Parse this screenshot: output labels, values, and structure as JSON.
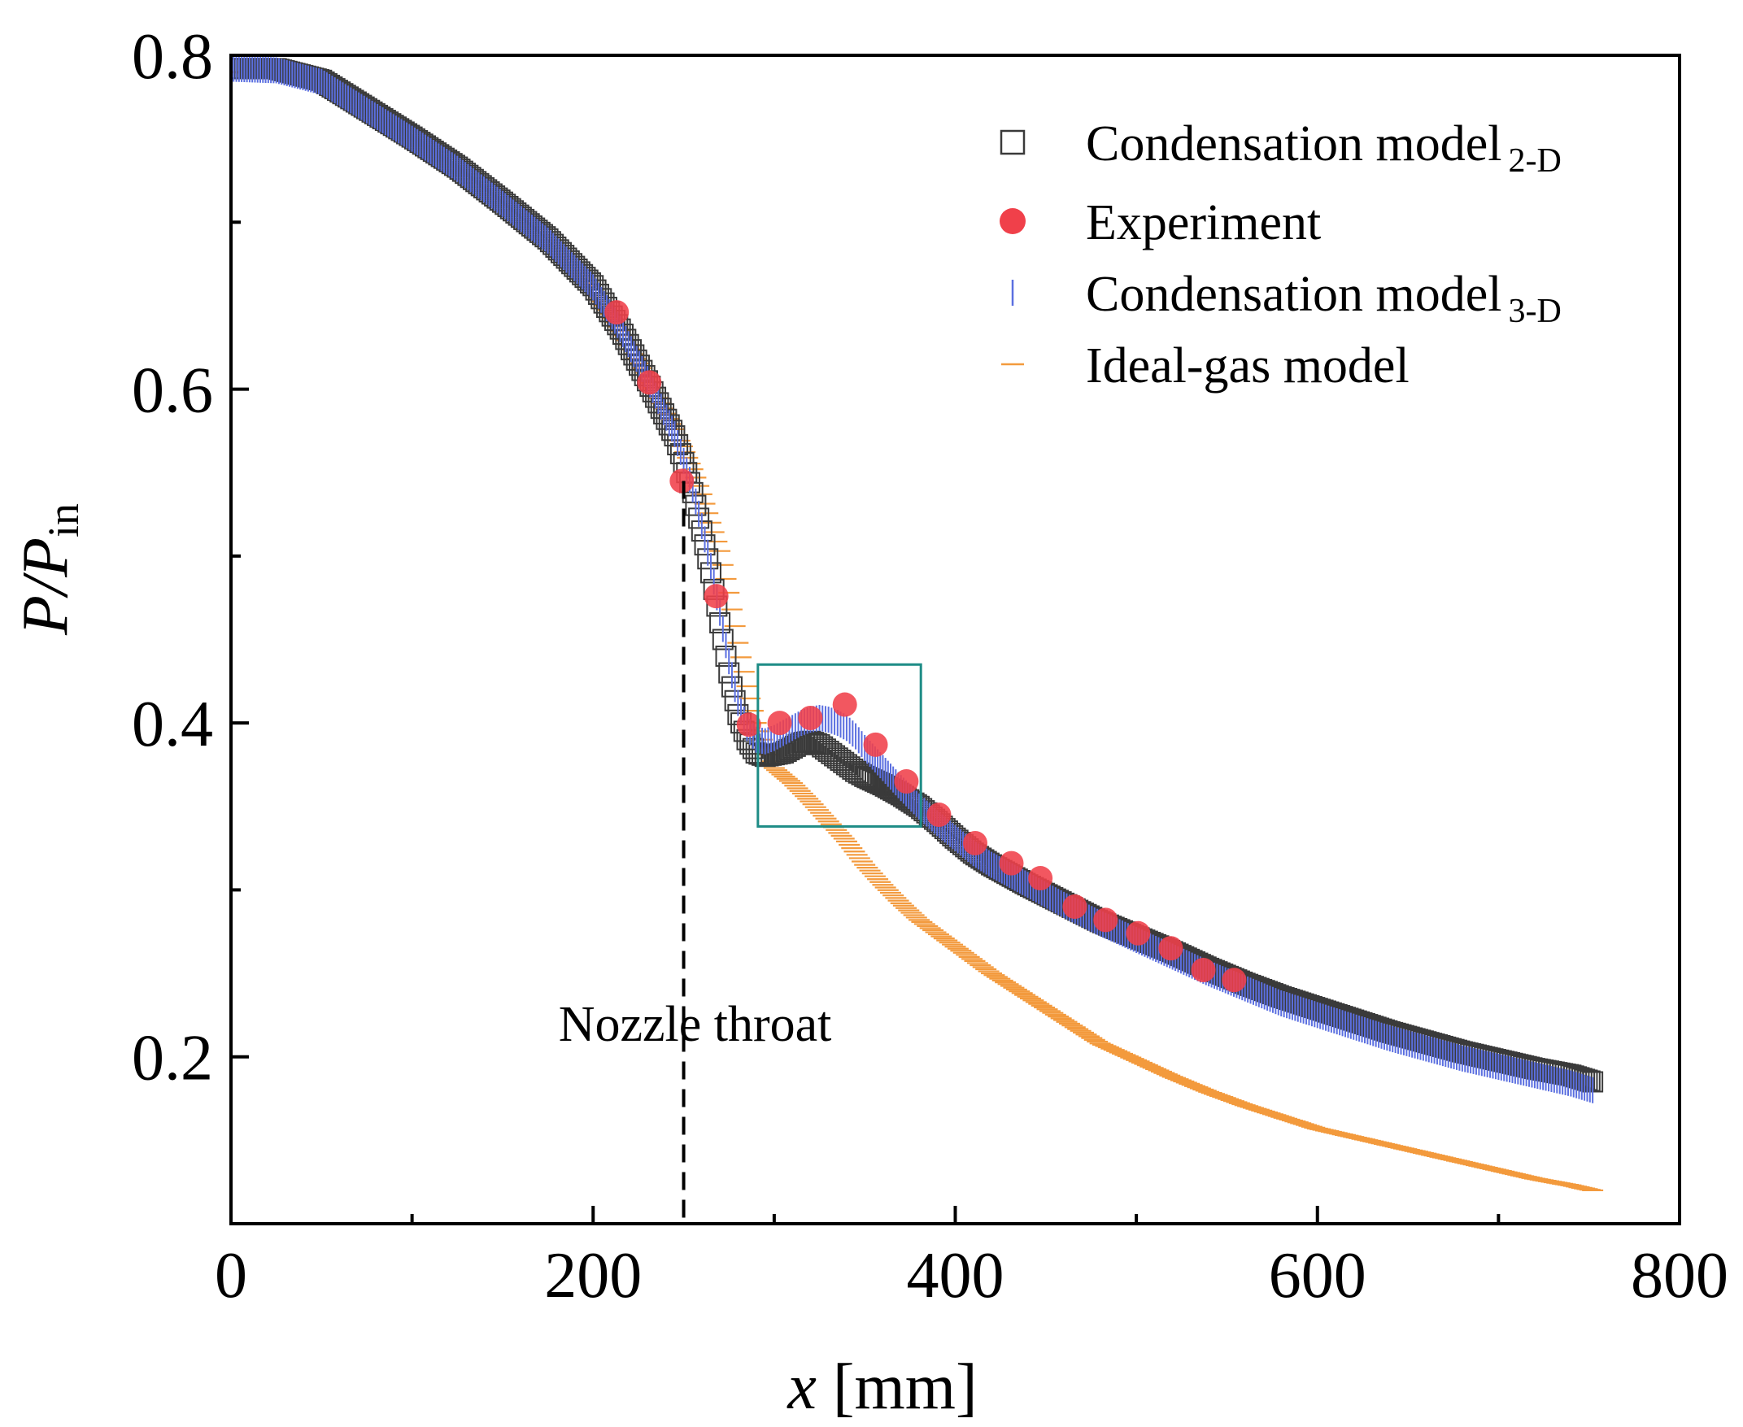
{
  "chart_data": {
    "type": "scatter",
    "title": "",
    "xlabel": {
      "italic": "x",
      "rest": " [mm]"
    },
    "ylabel": {
      "main": "P/P",
      "sub": "in"
    },
    "xlim": [
      0,
      800
    ],
    "ylim": [
      0.1,
      0.8
    ],
    "x_major_ticks": [
      0,
      200,
      400,
      600,
      800
    ],
    "x_minor_ticks": [
      100,
      300,
      500,
      700
    ],
    "y_major_ticks": [
      0.2,
      0.4,
      0.6,
      0.8
    ],
    "y_minor_ticks": [
      0.3,
      0.5,
      0.7
    ],
    "x_tick_labels": [
      "0",
      "200",
      "400",
      "600",
      "800"
    ],
    "y_tick_labels": [
      "0.2",
      "0.4",
      "0.6",
      "0.8"
    ],
    "annotation": {
      "text": "Nozzle throat",
      "x": 250,
      "y_from": 0.1,
      "y_to": 0.545
    },
    "highlight_box": {
      "x0": 291,
      "x1": 381,
      "y0": 0.338,
      "y1": 0.435
    },
    "legend_position": "top-right",
    "series": [
      {
        "name": "Condensation model",
        "name_sub": "2-D",
        "marker": "square",
        "color": "#3a3a3a",
        "x": [
          0,
          25,
          50,
          75,
          100,
          125,
          150,
          175,
          200,
          215,
          230,
          245,
          250,
          255,
          260,
          265,
          270,
          275,
          280,
          285,
          290,
          295,
          300,
          305,
          310,
          315,
          320,
          325,
          330,
          335,
          340,
          345,
          350,
          360,
          370,
          380,
          390,
          400,
          410,
          420,
          430,
          440,
          460,
          480,
          500,
          520,
          540,
          560,
          580,
          600,
          620,
          640,
          660,
          680,
          700,
          720,
          740,
          752
        ],
        "y": [
          0.792,
          0.792,
          0.785,
          0.768,
          0.751,
          0.733,
          0.712,
          0.69,
          0.662,
          0.636,
          0.605,
          0.572,
          0.556,
          0.538,
          0.515,
          0.49,
          0.46,
          0.43,
          0.405,
          0.39,
          0.382,
          0.38,
          0.381,
          0.382,
          0.385,
          0.388,
          0.389,
          0.387,
          0.383,
          0.379,
          0.375,
          0.371,
          0.368,
          0.363,
          0.357,
          0.35,
          0.341,
          0.331,
          0.322,
          0.315,
          0.309,
          0.303,
          0.292,
          0.281,
          0.272,
          0.263,
          0.253,
          0.244,
          0.236,
          0.229,
          0.222,
          0.215,
          0.209,
          0.203,
          0.198,
          0.193,
          0.189,
          0.185
        ]
      },
      {
        "name": "Experiment",
        "marker": "circle",
        "color": "#f0404a",
        "x": [
          213,
          231,
          249,
          268,
          286,
          303,
          320,
          339,
          356,
          373,
          391,
          411,
          431,
          447,
          466,
          483,
          501,
          519,
          537,
          554
        ],
        "y": [
          0.646,
          0.604,
          0.545,
          0.476,
          0.399,
          0.4,
          0.403,
          0.411,
          0.387,
          0.365,
          0.345,
          0.328,
          0.316,
          0.307,
          0.29,
          0.282,
          0.274,
          0.265,
          0.252,
          0.246
        ]
      },
      {
        "name": "Condensation model",
        "name_sub": "3-D",
        "marker": "vline",
        "color": "#5b6fe0",
        "x": [
          0,
          25,
          50,
          75,
          100,
          125,
          150,
          175,
          200,
          215,
          230,
          245,
          250,
          255,
          260,
          265,
          270,
          275,
          280,
          285,
          290,
          295,
          300,
          305,
          310,
          315,
          320,
          325,
          330,
          335,
          340,
          345,
          350,
          360,
          370,
          380,
          390,
          400,
          410,
          420,
          430,
          440,
          460,
          480,
          500,
          520,
          540,
          560,
          580,
          600,
          620,
          640,
          660,
          680,
          700,
          720,
          740,
          752
        ],
        "y": [
          0.792,
          0.791,
          0.784,
          0.767,
          0.75,
          0.732,
          0.711,
          0.689,
          0.661,
          0.636,
          0.606,
          0.573,
          0.557,
          0.54,
          0.518,
          0.494,
          0.466,
          0.437,
          0.412,
          0.397,
          0.39,
          0.389,
          0.391,
          0.394,
          0.397,
          0.4,
          0.402,
          0.403,
          0.402,
          0.4,
          0.397,
          0.392,
          0.385,
          0.373,
          0.361,
          0.35,
          0.34,
          0.331,
          0.322,
          0.315,
          0.309,
          0.303,
          0.291,
          0.28,
          0.27,
          0.26,
          0.25,
          0.241,
          0.232,
          0.225,
          0.218,
          0.211,
          0.205,
          0.199,
          0.194,
          0.189,
          0.184,
          0.18
        ]
      },
      {
        "name": "Ideal-gas model",
        "marker": "hline",
        "color": "#f39a3d",
        "x": [
          0,
          25,
          50,
          75,
          100,
          125,
          150,
          175,
          200,
          215,
          230,
          245,
          255,
          260,
          265,
          270,
          275,
          280,
          285,
          290,
          295,
          300,
          310,
          320,
          330,
          340,
          350,
          360,
          370,
          380,
          400,
          420,
          440,
          460,
          480,
          500,
          520,
          540,
          560,
          580,
          600,
          620,
          640,
          660,
          680,
          700,
          720,
          740,
          752
        ],
        "y": [
          0.79,
          0.789,
          0.782,
          0.766,
          0.749,
          0.731,
          0.71,
          0.688,
          0.66,
          0.635,
          0.607,
          0.576,
          0.552,
          0.537,
          0.52,
          0.503,
          0.478,
          0.448,
          0.422,
          0.4,
          0.385,
          0.373,
          0.364,
          0.353,
          0.341,
          0.329,
          0.315,
          0.303,
          0.292,
          0.282,
          0.266,
          0.25,
          0.236,
          0.222,
          0.208,
          0.198,
          0.188,
          0.179,
          0.171,
          0.164,
          0.157,
          0.152,
          0.147,
          0.142,
          0.137,
          0.132,
          0.127,
          0.123,
          0.12
        ]
      }
    ]
  }
}
